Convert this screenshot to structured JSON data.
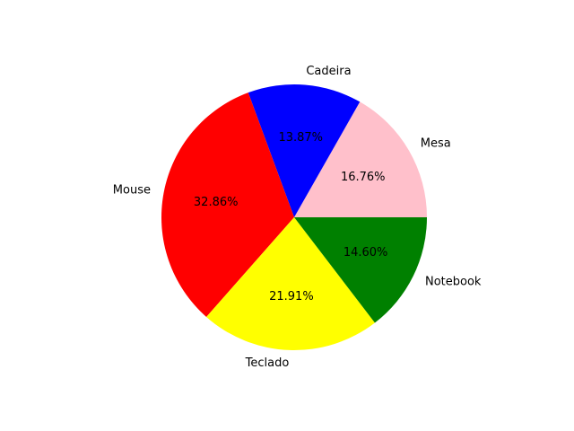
{
  "chart_data": {
    "type": "pie",
    "title": "",
    "start_angle_deg": 0,
    "direction": "counterclockwise",
    "slices": [
      {
        "label": "Mesa",
        "value": 16.76,
        "pct_label": "16.76%",
        "color": "#ffc0cb"
      },
      {
        "label": "Cadeira",
        "value": 13.87,
        "pct_label": "13.87%",
        "color": "#0000ff"
      },
      {
        "label": "Mouse",
        "value": 32.86,
        "pct_label": "32.86%",
        "color": "#ff0000"
      },
      {
        "label": "Teclado",
        "value": 21.91,
        "pct_label": "21.91%",
        "color": "#ffff00"
      },
      {
        "label": "Notebook",
        "value": 14.6,
        "pct_label": "14.60%",
        "color": "#008000"
      }
    ]
  }
}
